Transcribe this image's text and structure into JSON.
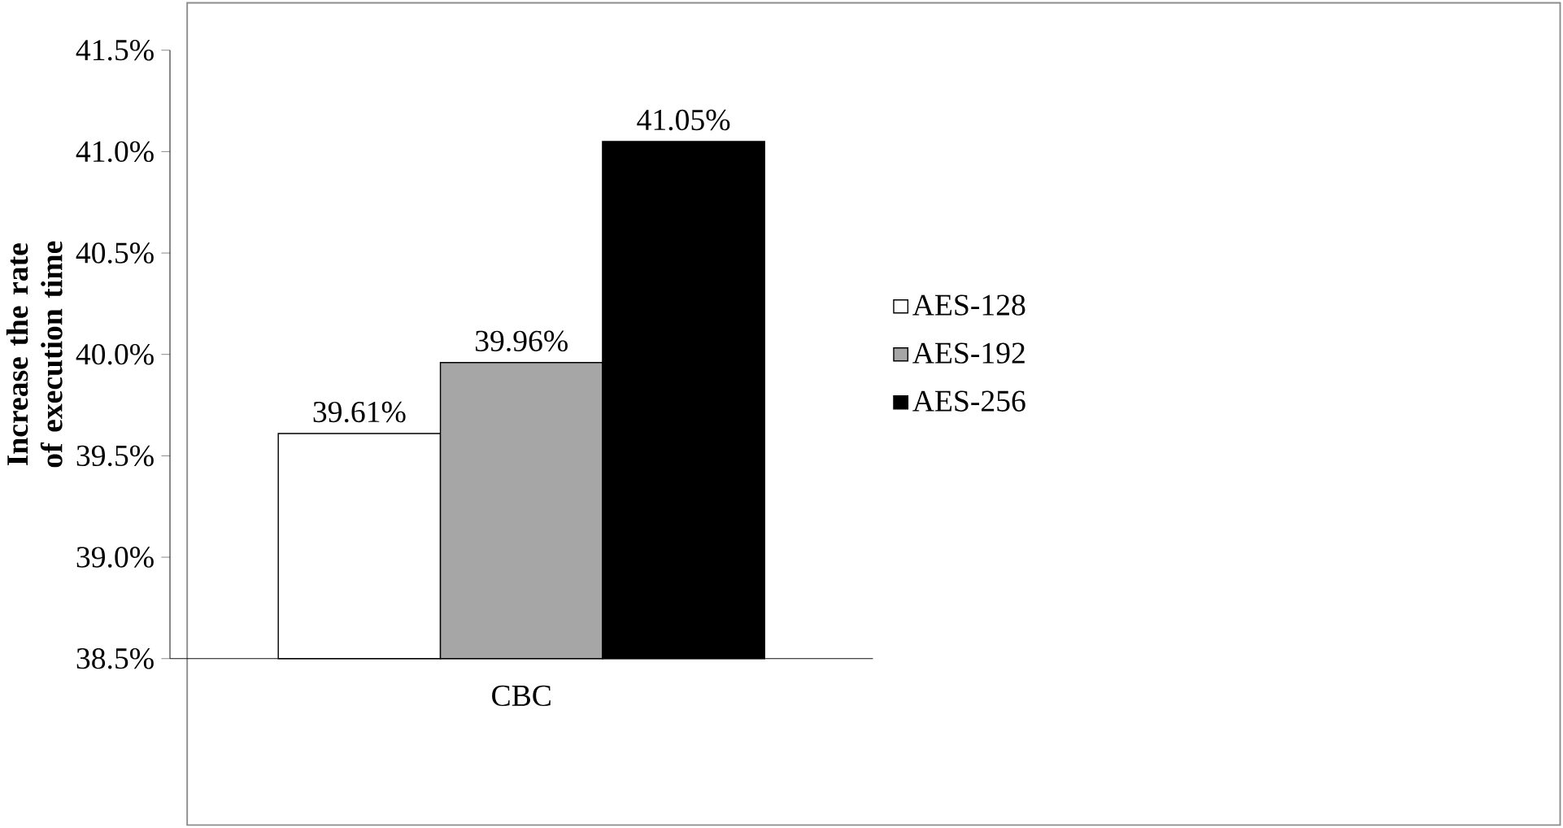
{
  "chart_data": {
    "type": "bar",
    "ylabel": "Increase the rate of execution time",
    "categories": [
      "CBC"
    ],
    "series": [
      {
        "name": "AES-128",
        "color": "#ffffff",
        "values": [
          39.61
        ],
        "value_labels": [
          "39.61%"
        ]
      },
      {
        "name": "AES-192",
        "color": "#a6a6a6",
        "values": [
          39.96
        ],
        "value_labels": [
          "39.96%"
        ]
      },
      {
        "name": "AES-256",
        "color": "#000000",
        "values": [
          41.05
        ],
        "value_labels": [
          "41.05%"
        ]
      }
    ],
    "ylim": [
      38.5,
      41.5
    ],
    "yticks": [
      {
        "value": 38.5,
        "label": "38.5%"
      },
      {
        "value": 39.0,
        "label": "39.0%"
      },
      {
        "value": 39.5,
        "label": "39.5%"
      },
      {
        "value": 40.0,
        "label": "40.0%"
      },
      {
        "value": 40.5,
        "label": "40.5%"
      },
      {
        "value": 41.0,
        "label": "41.0%"
      },
      {
        "value": 41.5,
        "label": "41.5%"
      }
    ],
    "legend": "right",
    "grid": false
  }
}
